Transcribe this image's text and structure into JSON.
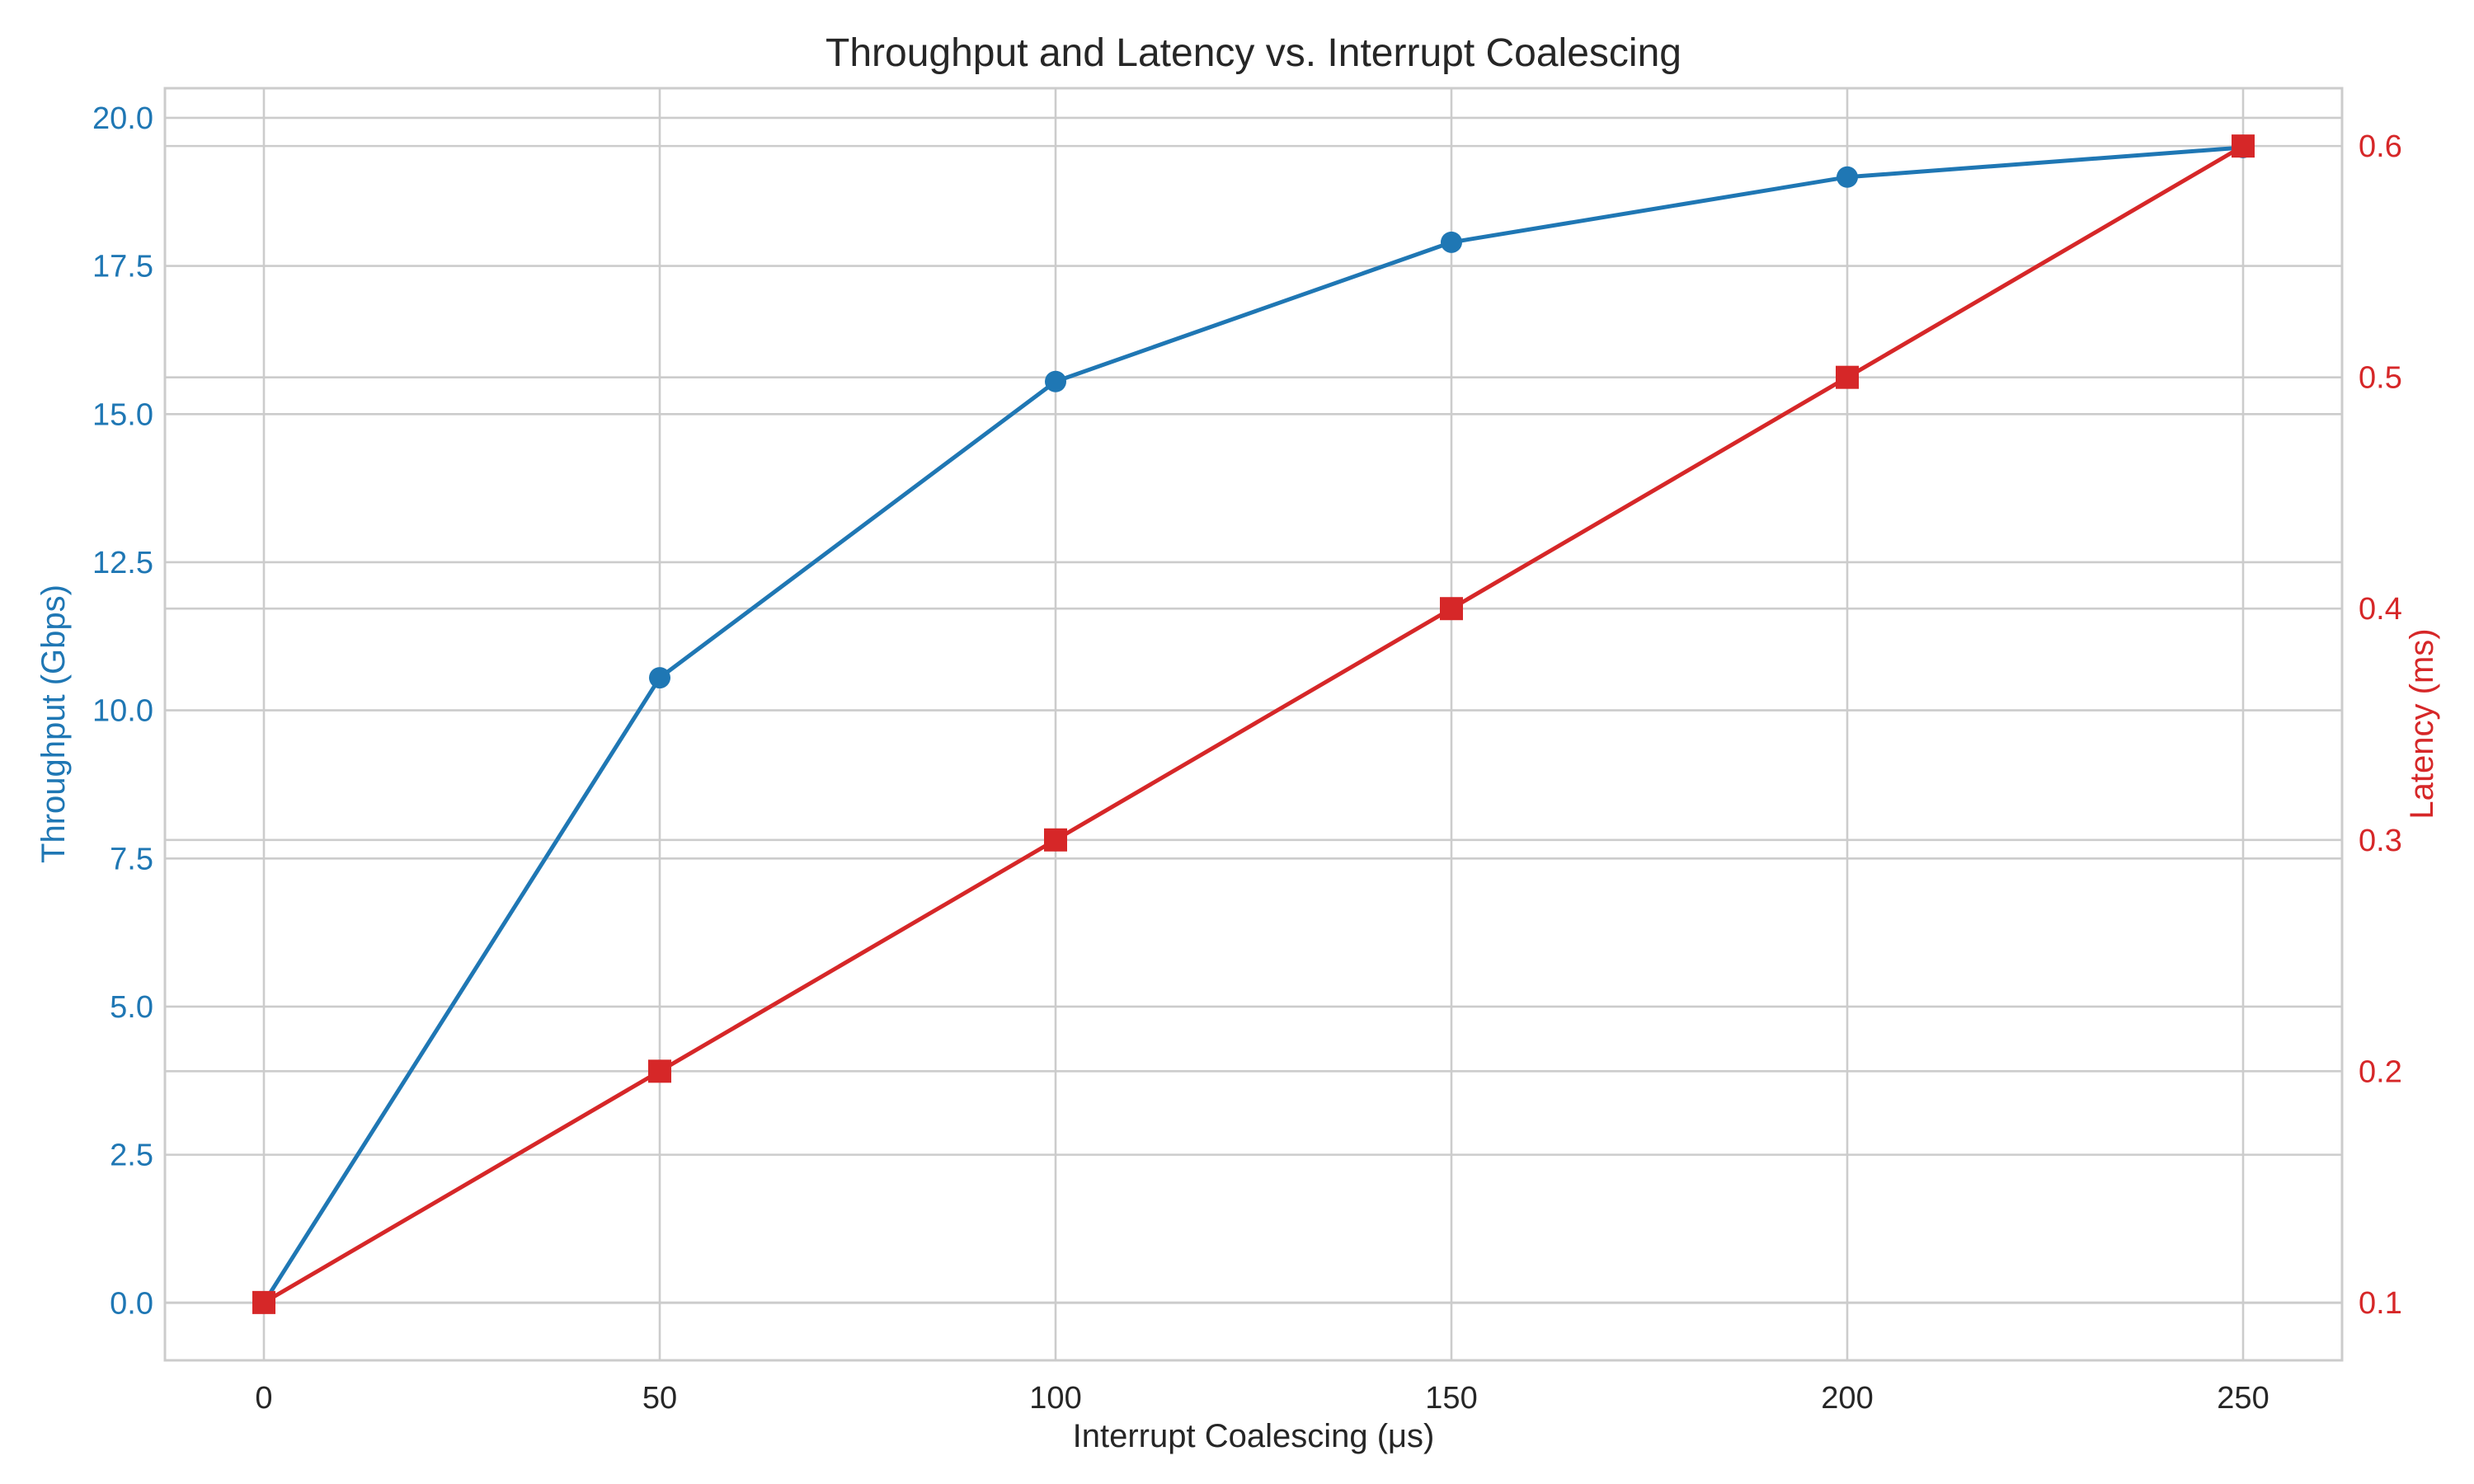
{
  "chart_data": {
    "type": "line",
    "title": "Throughput and Latency vs. Interrupt Coalescing",
    "xlabel": "Interrupt Coalescing (μs)",
    "x": [
      0,
      50,
      100,
      150,
      200,
      250
    ],
    "x_ticks": [
      "0",
      "50",
      "100",
      "150",
      "200",
      "250"
    ],
    "xlim": [
      -12.5,
      262.5
    ],
    "grid": true,
    "legend": "none",
    "y_left": {
      "label": "Throughput (Gbps)",
      "color": "#1f77b4",
      "ticks": [
        "0.0",
        "2.5",
        "5.0",
        "7.5",
        "10.0",
        "12.5",
        "15.0",
        "17.5",
        "20.0"
      ],
      "tick_values": [
        0,
        2.5,
        5,
        7.5,
        10,
        12.5,
        15,
        17.5,
        20
      ],
      "ylim": [
        -0.97,
        20.5
      ]
    },
    "y_right": {
      "label": "Latency (ms)",
      "color": "#d62728",
      "ticks": [
        "0.1",
        "0.2",
        "0.3",
        "0.4",
        "0.5",
        "0.6"
      ],
      "tick_values": [
        0.1,
        0.2,
        0.3,
        0.4,
        0.5,
        0.6
      ],
      "ylim": [
        0.075,
        0.625
      ]
    },
    "series": [
      {
        "name": "",
        "axis": "left",
        "marker": "circle",
        "color": "#1f77b4",
        "values": [
          0.0,
          10.55,
          15.55,
          17.9,
          19.0,
          19.5
        ]
      },
      {
        "name": "",
        "axis": "right",
        "marker": "square",
        "color": "#d62728",
        "values": [
          0.1,
          0.2,
          0.3,
          0.4,
          0.5,
          0.6
        ]
      }
    ]
  }
}
